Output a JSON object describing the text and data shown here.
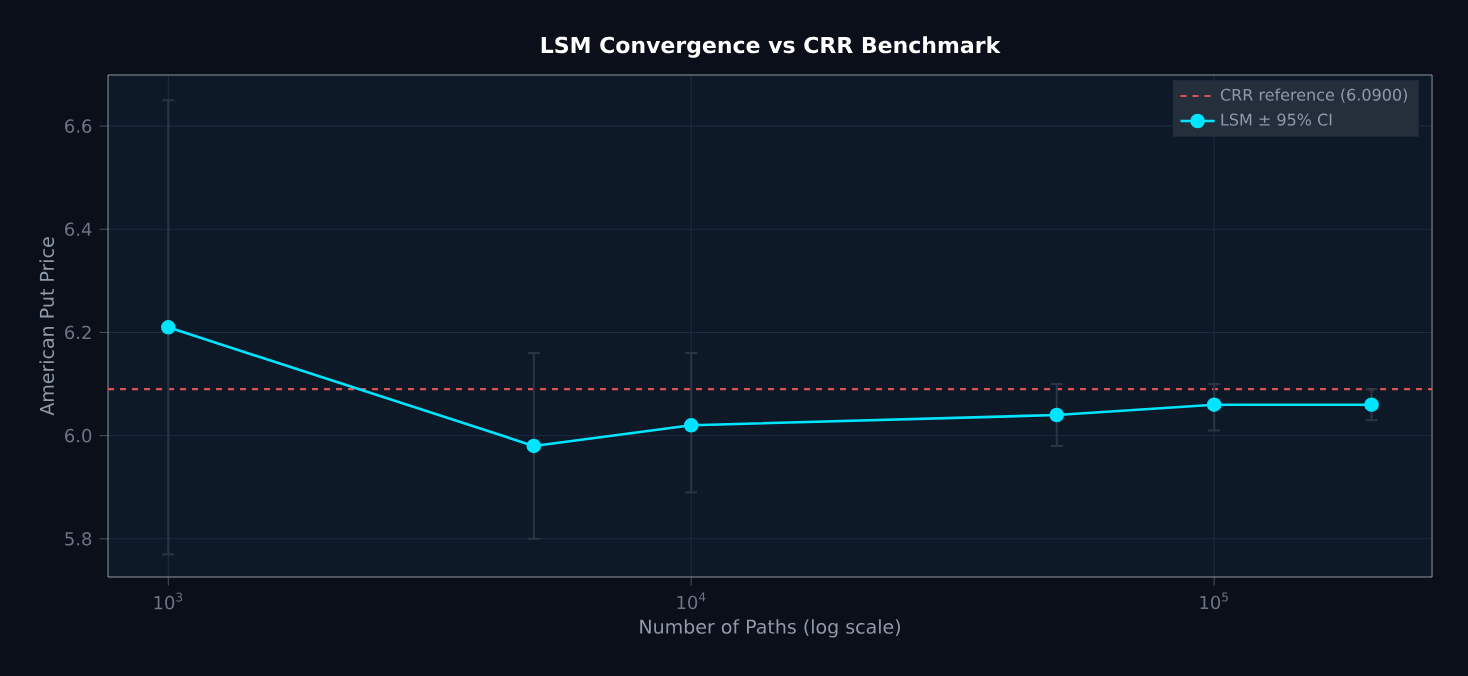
{
  "chart_data": {
    "type": "line",
    "title": "LSM Convergence vs CRR Benchmark",
    "xlabel": "Number of Paths (log scale)",
    "ylabel": "American Put Price",
    "x": [
      1000,
      5000,
      10000,
      50000,
      100000,
      200000
    ],
    "series": [
      {
        "name": "LSM ± 95% CI",
        "color": "#00e5ff",
        "values": [
          6.21,
          5.98,
          6.02,
          6.04,
          6.06,
          6.06
        ],
        "errors": [
          [
            5.77,
            6.65
          ],
          [
            5.8,
            6.16
          ],
          [
            5.89,
            6.16
          ],
          [
            5.98,
            6.1
          ],
          [
            6.01,
            6.1
          ],
          [
            6.03,
            6.09
          ]
        ]
      }
    ],
    "ref_lines": [
      {
        "axis": "y",
        "value": 6.09,
        "label": "CRR reference (6.0900)",
        "color": "#e05252",
        "line_style": "dashed"
      }
    ],
    "log": "x",
    "xlim": [
      767,
      261000
    ],
    "ylim": [
      5.726,
      6.699
    ],
    "xticks": [
      {
        "value": 1000,
        "label": "10$^{3}$"
      },
      {
        "value": 10000,
        "label": "10$^{4}$"
      },
      {
        "value": 100000,
        "label": "10$^{5}$"
      }
    ],
    "yticks": [
      {
        "value": 5.8,
        "label": "5.8"
      },
      {
        "value": 6.0,
        "label": "6.0"
      },
      {
        "value": 6.2,
        "label": "6.2"
      },
      {
        "value": 6.4,
        "label": "6.4"
      },
      {
        "value": 6.6,
        "label": "6.6"
      }
    ],
    "grid": true,
    "legend": "top right",
    "marker": "circle",
    "line_style": "solid"
  }
}
